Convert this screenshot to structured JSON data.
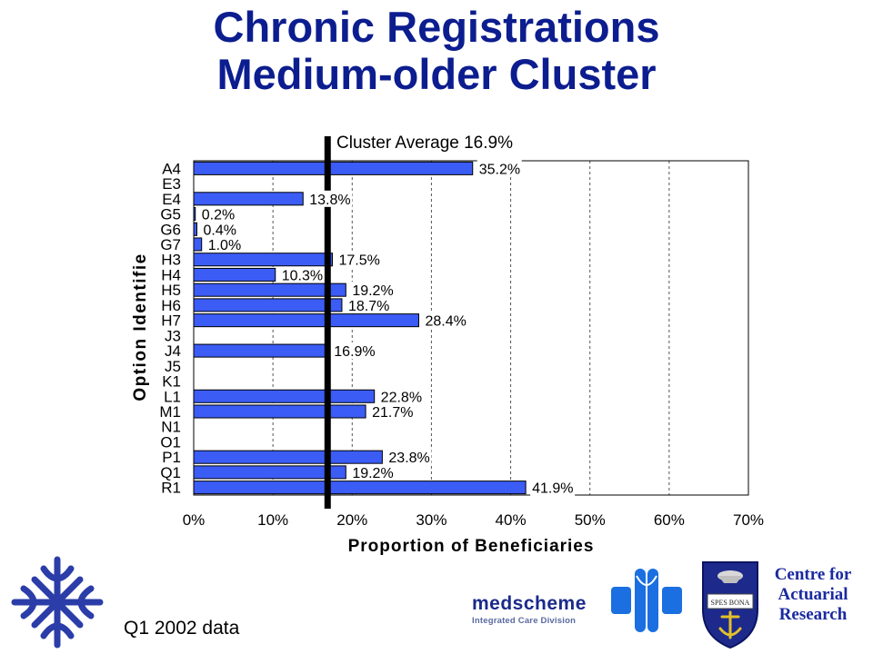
{
  "title": {
    "line1": "Chronic Registrations",
    "line2": "Medium-older Cluster"
  },
  "chart_data": {
    "type": "bar",
    "orientation": "horizontal",
    "categories": [
      "A4",
      "E3",
      "E4",
      "G5",
      "G6",
      "G7",
      "H3",
      "H4",
      "H5",
      "H6",
      "H7",
      "J3",
      "J4",
      "J5",
      "K1",
      "L1",
      "M1",
      "N1",
      "O1",
      "P1",
      "Q1",
      "R1"
    ],
    "values": [
      35.2,
      null,
      13.8,
      0.2,
      0.4,
      1.0,
      17.5,
      10.3,
      19.2,
      18.7,
      28.4,
      null,
      16.9,
      null,
      null,
      22.8,
      21.7,
      null,
      null,
      23.8,
      19.2,
      41.9
    ],
    "data_labels": [
      "35.2%",
      "",
      "13.8%",
      "0.2%",
      "0.4%",
      "1.0%",
      "17.5%",
      "10.3%",
      "19.2%",
      "18.7%",
      "28.4%",
      "",
      "16.9%",
      "",
      "",
      "22.8%",
      "21.7%",
      "",
      "",
      "23.8%",
      "19.2%",
      "41.9%"
    ],
    "xlabel": "Proportion of Beneficiaries",
    "ylabel": "Option Identifie",
    "xlim": [
      0,
      70
    ],
    "x_ticks": [
      0,
      10,
      20,
      30,
      40,
      50,
      60,
      70
    ],
    "x_tick_labels": [
      "0%",
      "10%",
      "20%",
      "30%",
      "40%",
      "50%",
      "60%",
      "70%"
    ],
    "grid": "vertical dashed",
    "bar_color": "#3b5cf5",
    "reference_line": {
      "value": 16.9,
      "label": "Cluster Average 16.9%"
    }
  },
  "footnote": "Q1 2002 data",
  "medscheme": {
    "name": "medscheme",
    "division": "Integrated Care Division"
  },
  "car": {
    "line1": "Centre for",
    "line2": "Actuarial",
    "line3": "Research",
    "crest_motto": "SPES BONA"
  },
  "colors": {
    "title": "#0c1d8f",
    "bar": "#3b5cf5",
    "logo_blue": "#2b3da8",
    "medscheme_blue": "#1b6fe0"
  }
}
